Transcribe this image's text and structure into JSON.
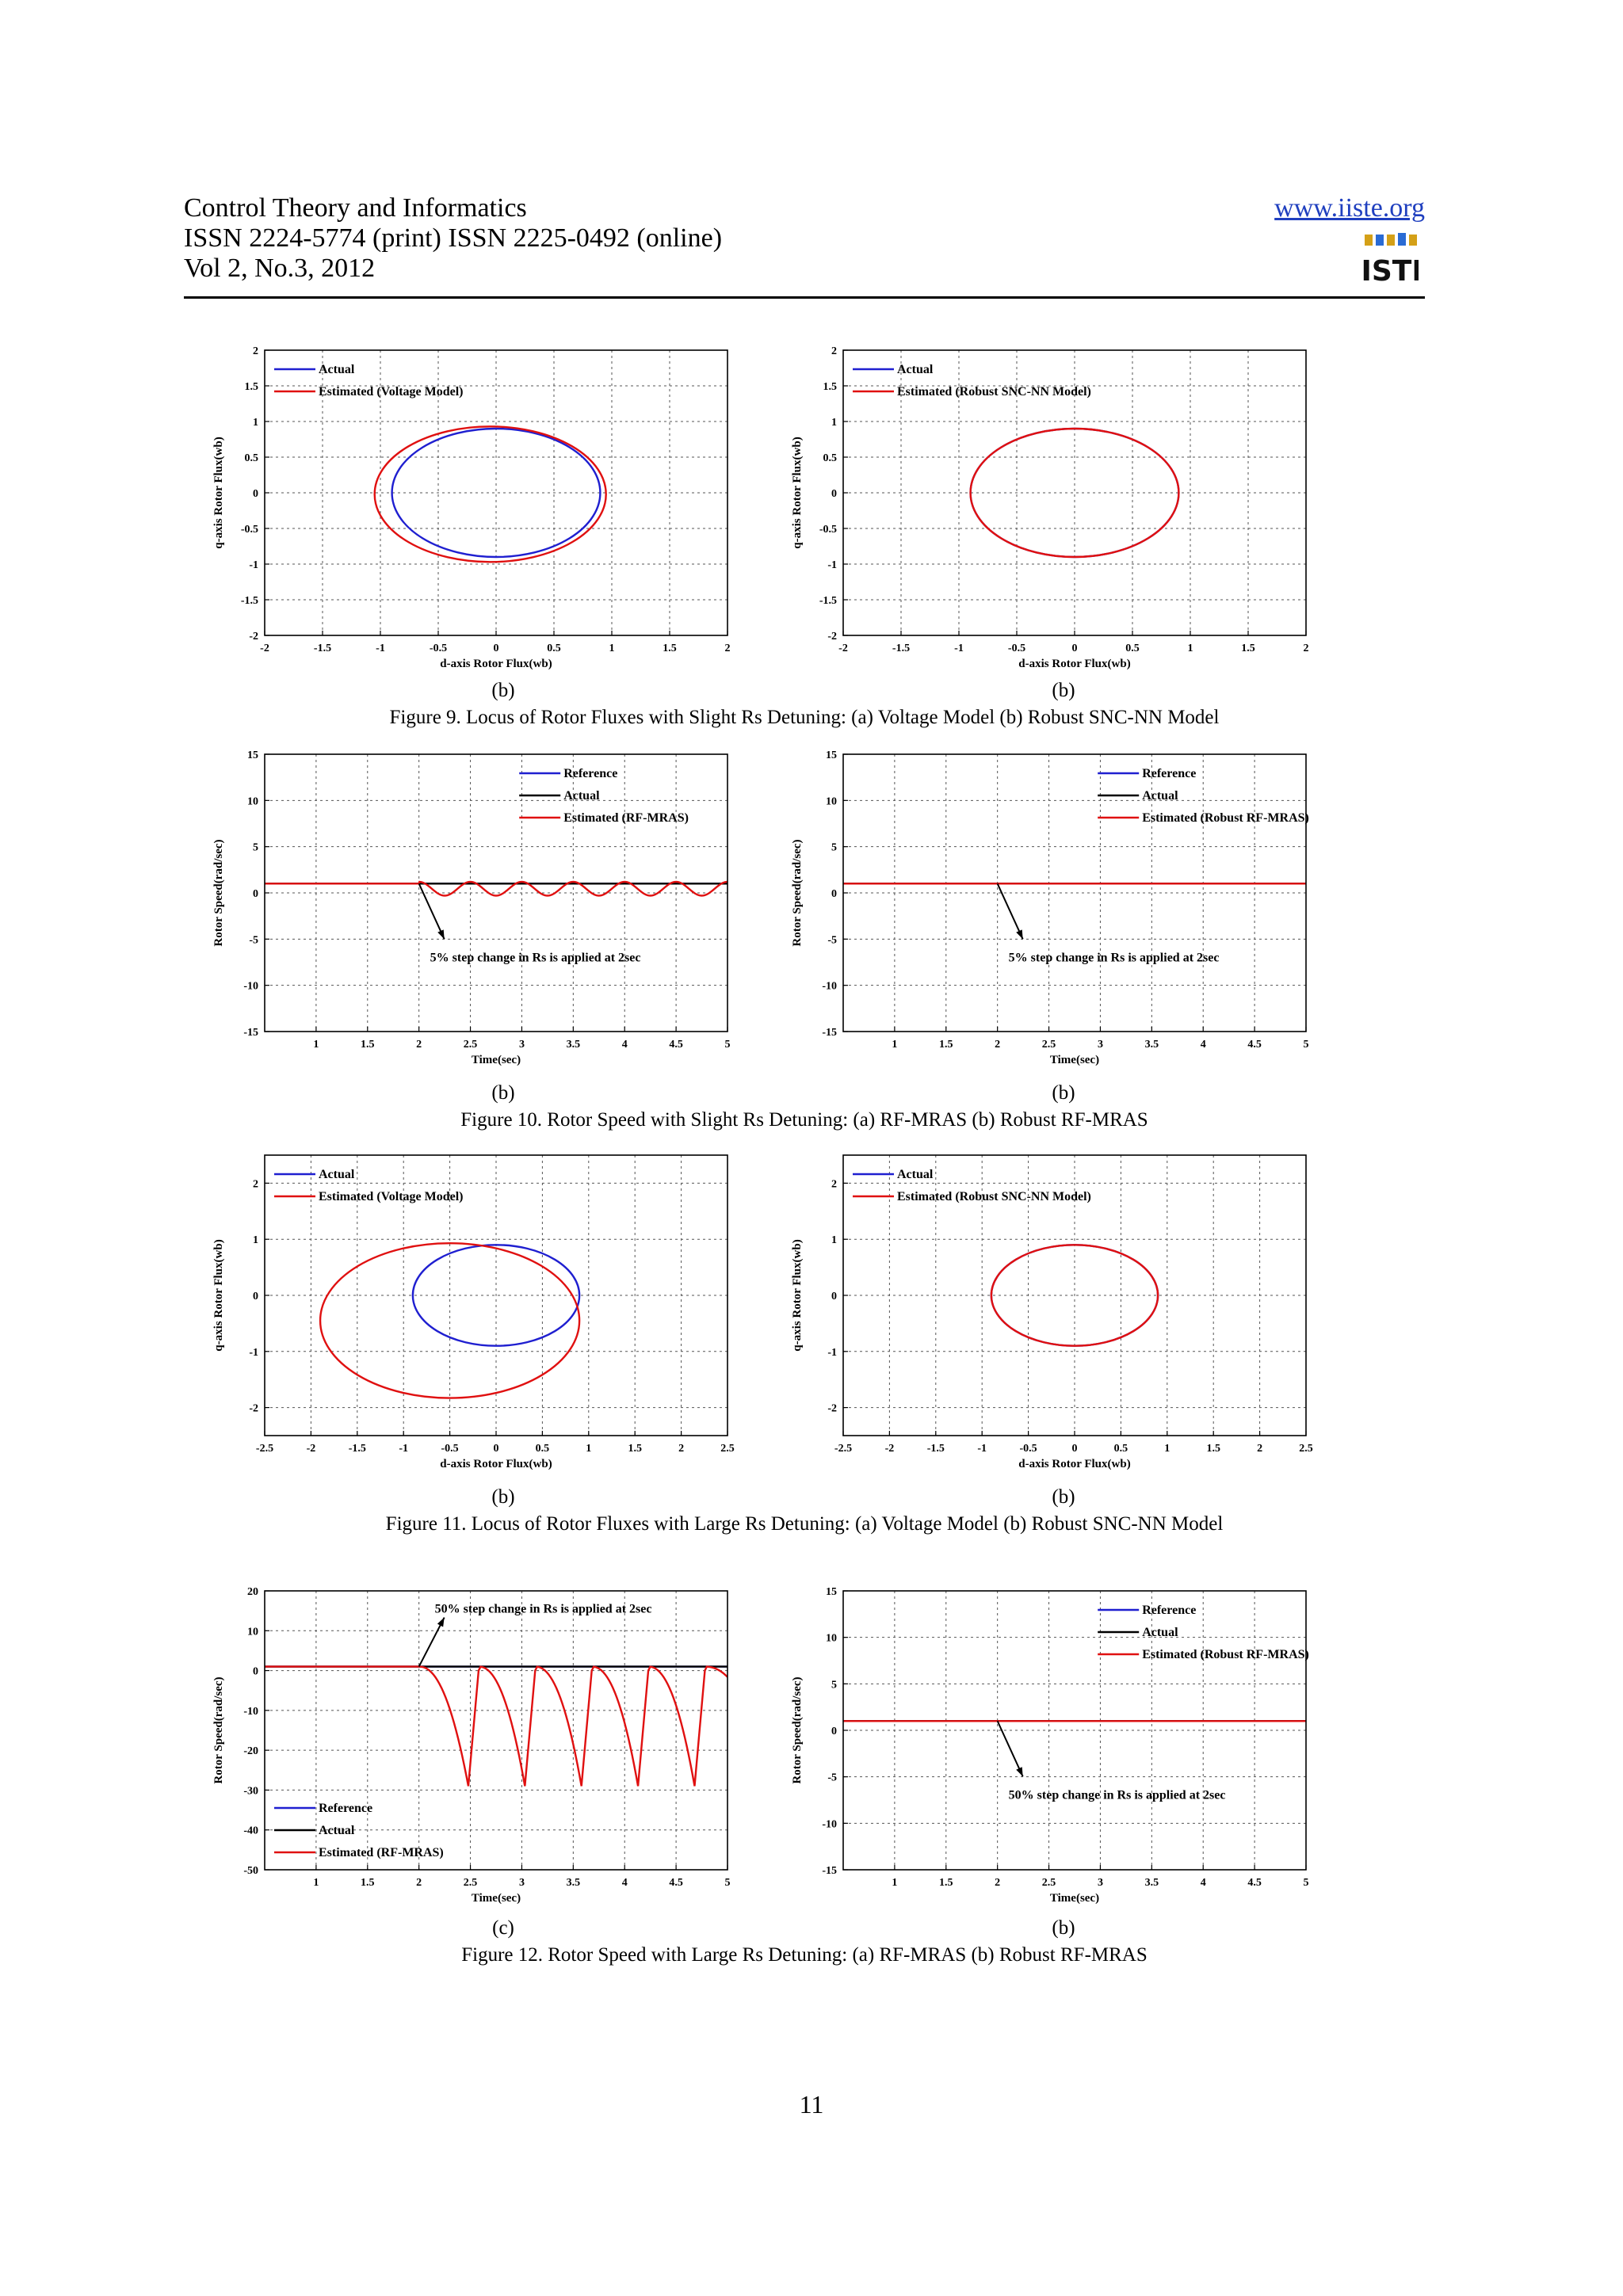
{
  "header": {
    "line1": "Control Theory and Informatics",
    "line2": "ISSN 2224-5774 (print) ISSN 2225-0492 (online)",
    "line3": "Vol 2, No.3, 2012",
    "url": "www.iiste.org",
    "logo_text": "IISTE"
  },
  "figures": [
    {
      "caption": "Figure 9. Locus of Rotor Fluxes with Slight Rs Detuning: (a) Voltage Model (b) Robust SNC-NN Model",
      "subcaptions": [
        "(b)",
        "(b)"
      ]
    },
    {
      "caption": "Figure 10. Rotor Speed with Slight Rs Detuning: (a) RF-MRAS (b) Robust RF-MRAS",
      "subcaptions": [
        "(b)",
        "(b)"
      ]
    },
    {
      "caption": "Figure 11. Locus of Rotor Fluxes with Large Rs Detuning: (a) Voltage Model (b) Robust SNC-NN Model",
      "subcaptions": [
        "(b)",
        "(b)"
      ]
    },
    {
      "caption": "Figure 12. Rotor Speed with Large Rs Detuning: (a) RF-MRAS (b) Robust RF-MRAS",
      "subcaptions": [
        "(c)",
        "(b)"
      ]
    }
  ],
  "page_number": "11",
  "colors": {
    "reference": "#1f1fd0",
    "actual": "#000000",
    "estimated": "#e01010",
    "grid": "#555555"
  },
  "chart_data": [
    {
      "id": "c9a",
      "type": "line",
      "xlabel": "d-axis Rotor Flux(wb)",
      "ylabel": "q-axis Rotor Flux(wb)",
      "xlim": [
        -2,
        2
      ],
      "ylim": [
        -2,
        2
      ],
      "xticks": [
        "-2",
        "-1.5",
        "-1",
        "-0.5",
        "0",
        "0.5",
        "1",
        "1.5",
        "2"
      ],
      "yticks": [
        "-2",
        "-1.5",
        "-1",
        "-0.5",
        "0",
        "0.5",
        "1",
        "1.5",
        "2"
      ],
      "grid": true,
      "legend_position": "top-left",
      "series": [
        {
          "name": "Actual",
          "color": "blue",
          "ellipse": {
            "cx": 0,
            "cy": 0,
            "rx": 0.9,
            "ry": 0.9
          }
        },
        {
          "name": "Estimated (Voltage Model)",
          "color": "red",
          "ellipse": {
            "cx": -0.05,
            "cy": -0.02,
            "rx": 1.0,
            "ry": 0.95
          }
        }
      ]
    },
    {
      "id": "c9b",
      "type": "line",
      "xlabel": "d-axis Rotor Flux(wb)",
      "ylabel": "q-axis Rotor Flux(wb)",
      "xlim": [
        -2,
        2
      ],
      "ylim": [
        -2,
        2
      ],
      "xticks": [
        "-2",
        "-1.5",
        "-1",
        "-0.5",
        "0",
        "0.5",
        "1",
        "1.5",
        "2"
      ],
      "yticks": [
        "-2",
        "-1.5",
        "-1",
        "-0.5",
        "0",
        "0.5",
        "1",
        "1.5",
        "2"
      ],
      "grid": true,
      "legend_position": "top-left",
      "series": [
        {
          "name": "Actual",
          "color": "blue",
          "ellipse": {
            "cx": 0,
            "cy": 0,
            "rx": 0.9,
            "ry": 0.9
          }
        },
        {
          "name": "Estimated (Robust SNC-NN Model)",
          "color": "red",
          "ellipse": {
            "cx": 0,
            "cy": 0,
            "rx": 0.9,
            "ry": 0.9
          }
        }
      ]
    },
    {
      "id": "c10a",
      "type": "line",
      "xlabel": "Time(sec)",
      "ylabel": "Rotor Speed(rad/sec)",
      "xlim": [
        0.5,
        5
      ],
      "ylim": [
        -15,
        15
      ],
      "xticks": [
        "1",
        "1.5",
        "2",
        "2.5",
        "3",
        "3.5",
        "4",
        "4.5",
        "5"
      ],
      "yticks": [
        "-15",
        "-10",
        "-5",
        "0",
        "5",
        "10",
        "15"
      ],
      "grid": true,
      "legend_position": "top-right",
      "series": [
        {
          "name": "Reference",
          "color": "blue",
          "x": [
            0.5,
            5
          ],
          "y": [
            1,
            1
          ]
        },
        {
          "name": "Actual",
          "color": "black",
          "x": [
            0.5,
            5
          ],
          "y": [
            1,
            1
          ]
        },
        {
          "name": "Estimated (RF-MRAS)",
          "color": "red",
          "step_at": 2,
          "base": 1,
          "oscillation": {
            "period": 0.5,
            "min": -0.3,
            "max": 1.2
          }
        }
      ],
      "annotation": {
        "text": "5% step change in Rs is applied at 2sec",
        "x": 2,
        "y": 1
      }
    },
    {
      "id": "c10b",
      "type": "line",
      "xlabel": "Time(sec)",
      "ylabel": "Rotor Speed(rad/sec)",
      "xlim": [
        0.5,
        5
      ],
      "ylim": [
        -15,
        15
      ],
      "xticks": [
        "1",
        "1.5",
        "2",
        "2.5",
        "3",
        "3.5",
        "4",
        "4.5",
        "5"
      ],
      "yticks": [
        "-15",
        "-10",
        "-5",
        "0",
        "5",
        "10",
        "15"
      ],
      "grid": true,
      "legend_position": "top-right",
      "series": [
        {
          "name": "Reference",
          "color": "blue",
          "x": [
            0.5,
            5
          ],
          "y": [
            1,
            1
          ]
        },
        {
          "name": "Actual",
          "color": "black",
          "x": [
            0.5,
            5
          ],
          "y": [
            1,
            1
          ]
        },
        {
          "name": "Estimated (Robust RF-MRAS)",
          "color": "red",
          "x": [
            0.5,
            5
          ],
          "y": [
            1,
            1
          ]
        }
      ],
      "annotation": {
        "text": "5% step change in Rs is applied at 2sec",
        "x": 2,
        "y": 1
      }
    },
    {
      "id": "c11a",
      "type": "line",
      "xlabel": "d-axis Rotor Flux(wb)",
      "ylabel": "q-axis Rotor Flux(wb)",
      "xlim": [
        -2.5,
        2.5
      ],
      "ylim": [
        -2.5,
        2.5
      ],
      "xticks": [
        "-2.5",
        "-2",
        "-1.5",
        "-1",
        "-0.5",
        "0",
        "0.5",
        "1",
        "1.5",
        "2",
        "2.5"
      ],
      "yticks": [
        "-2",
        "-1",
        "0",
        "1",
        "2"
      ],
      "grid": true,
      "legend_position": "top-left",
      "series": [
        {
          "name": "Actual",
          "color": "blue",
          "ellipse": {
            "cx": 0,
            "cy": 0,
            "rx": 0.9,
            "ry": 0.9
          }
        },
        {
          "name": "Estimated (Voltage Model)",
          "color": "red",
          "ellipse": {
            "cx": -0.5,
            "cy": -0.45,
            "rx": 1.4,
            "ry": 1.38
          }
        }
      ]
    },
    {
      "id": "c11b",
      "type": "line",
      "xlabel": "d-axis Rotor Flux(wb)",
      "ylabel": "q-axis Rotor Flux(wb)",
      "xlim": [
        -2.5,
        2.5
      ],
      "ylim": [
        -2.5,
        2.5
      ],
      "xticks": [
        "-2.5",
        "-2",
        "-1.5",
        "-1",
        "-0.5",
        "0",
        "0.5",
        "1",
        "1.5",
        "2",
        "2.5"
      ],
      "yticks": [
        "-2",
        "-1",
        "0",
        "1",
        "2"
      ],
      "grid": true,
      "legend_position": "top-left",
      "series": [
        {
          "name": "Actual",
          "color": "blue",
          "ellipse": {
            "cx": 0,
            "cy": 0,
            "rx": 0.9,
            "ry": 0.9
          }
        },
        {
          "name": "Estimated (Robust SNC-NN Model)",
          "color": "red",
          "ellipse": {
            "cx": 0,
            "cy": 0,
            "rx": 0.9,
            "ry": 0.9
          }
        }
      ]
    },
    {
      "id": "c12a",
      "type": "line",
      "xlabel": "Time(sec)",
      "ylabel": "Rotor Speed(rad/sec)",
      "xlim": [
        0.5,
        5
      ],
      "ylim": [
        -50,
        20
      ],
      "xticks": [
        "1",
        "1.5",
        "2",
        "2.5",
        "3",
        "3.5",
        "4",
        "4.5",
        "5"
      ],
      "yticks": [
        "-50",
        "-40",
        "-30",
        "-20",
        "-10",
        "0",
        "10",
        "20"
      ],
      "grid": true,
      "legend_position": "bottom-left",
      "series": [
        {
          "name": "Reference",
          "color": "blue",
          "x": [
            0.5,
            5
          ],
          "y": [
            1,
            1
          ]
        },
        {
          "name": "Actual",
          "color": "black",
          "x": [
            0.5,
            5
          ],
          "y": [
            1,
            1
          ]
        },
        {
          "name": "Estimated (RF-MRAS)",
          "color": "red",
          "step_at": 2,
          "base": 1,
          "dips": {
            "at": [
              2.48,
              3.03,
              3.58,
              4.13,
              4.68
            ],
            "min": -29
          }
        }
      ],
      "annotation": {
        "text": "50% step change in Rs is applied at 2sec",
        "x": 2,
        "y": 1
      }
    },
    {
      "id": "c12b",
      "type": "line",
      "xlabel": "Time(sec)",
      "ylabel": "Rotor Speed(rad/sec)",
      "xlim": [
        0.5,
        5
      ],
      "ylim": [
        -15,
        15
      ],
      "xticks": [
        "1",
        "1.5",
        "2",
        "2.5",
        "3",
        "3.5",
        "4",
        "4.5",
        "5"
      ],
      "yticks": [
        "-15",
        "-10",
        "-5",
        "0",
        "5",
        "10",
        "15"
      ],
      "grid": true,
      "legend_position": "top-right",
      "series": [
        {
          "name": "Reference",
          "color": "blue",
          "x": [
            0.5,
            5
          ],
          "y": [
            1,
            1
          ]
        },
        {
          "name": "Actual",
          "color": "black",
          "x": [
            0.5,
            5
          ],
          "y": [
            1,
            1
          ]
        },
        {
          "name": "Estimated (Robust RF-MRAS)",
          "color": "red",
          "x": [
            0.5,
            5
          ],
          "y": [
            1,
            1
          ]
        }
      ],
      "annotation": {
        "text": "50% step change in Rs is applied at 2sec",
        "x": 2,
        "y": 1
      }
    }
  ]
}
